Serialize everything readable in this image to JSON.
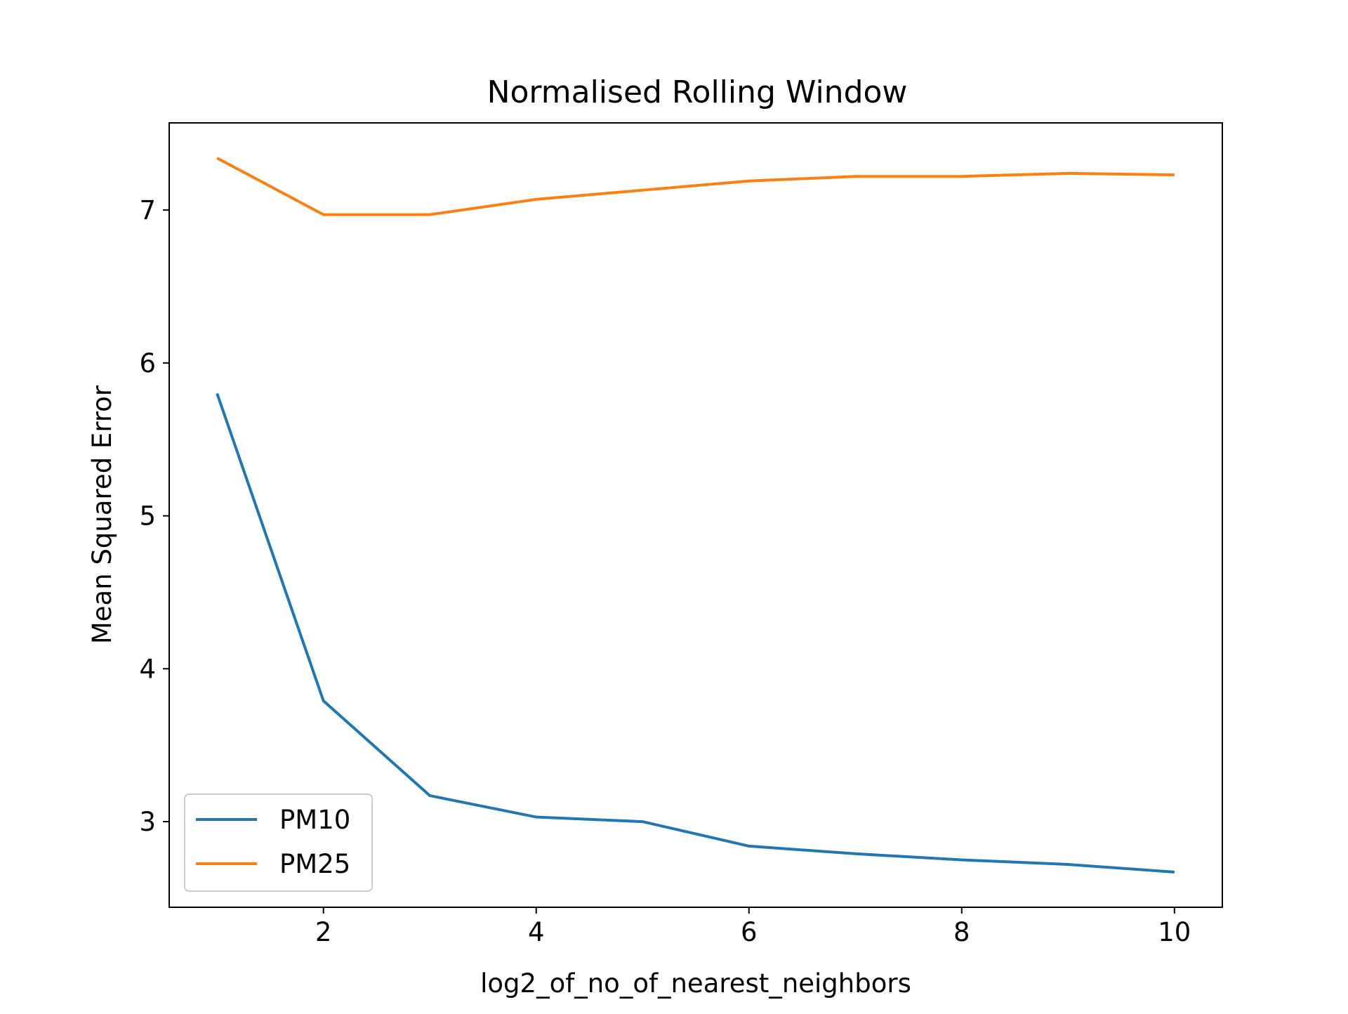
{
  "chart_data": {
    "type": "line",
    "title": "Normalised Rolling Window",
    "xlabel": "log2_of_no_of_nearest_neighbors",
    "ylabel": "Mean Squared Error",
    "x": [
      1,
      2,
      3,
      4,
      5,
      6,
      7,
      8,
      9,
      10
    ],
    "series": [
      {
        "name": "PM10",
        "color": "#1f77b4",
        "values": [
          5.8,
          3.79,
          3.17,
          3.03,
          3.0,
          2.84,
          2.79,
          2.75,
          2.72,
          2.67
        ]
      },
      {
        "name": "PM25",
        "color": "#ff7f0e",
        "values": [
          7.34,
          6.97,
          6.97,
          7.07,
          7.13,
          7.19,
          7.22,
          7.22,
          7.24,
          7.23
        ]
      }
    ],
    "xlim": [
      0.55,
      10.45
    ],
    "ylim": [
      2.44,
      7.57
    ],
    "xticks": [
      2,
      4,
      6,
      8,
      10
    ],
    "yticks": [
      3,
      4,
      5,
      6,
      7
    ],
    "grid": false,
    "legend_position": "lower-left"
  }
}
